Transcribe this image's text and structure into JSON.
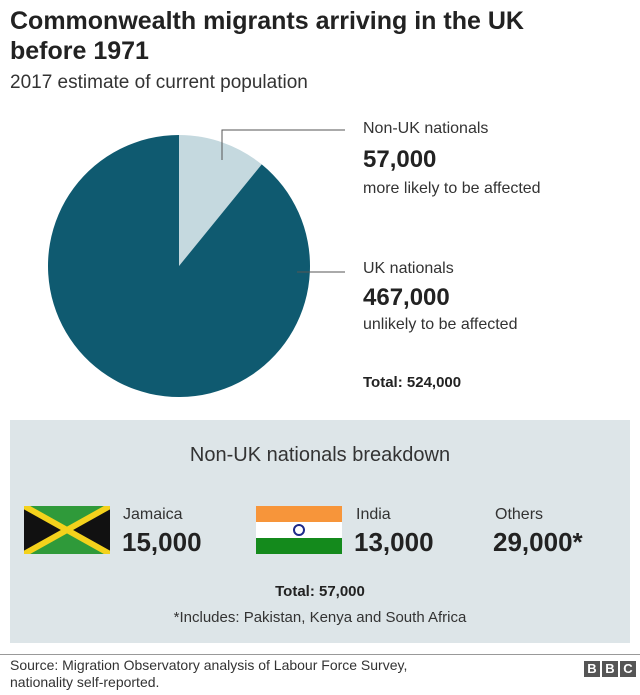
{
  "title": "Commonwealth migrants arriving in the UK before 1971",
  "subtitle": "2017 estimate of current population",
  "chart_data": {
    "type": "pie",
    "title": "Commonwealth migrants arriving in the UK before 1971",
    "subtitle": "2017 estimate of current population",
    "slices": [
      {
        "label": "Non-UK nationals",
        "value": 57000,
        "value_label": "57,000",
        "note": "more likely to be affected",
        "color": "#c5d9df"
      },
      {
        "label": "UK nationals",
        "value": 467000,
        "value_label": "467,000",
        "note": "unlikely to be affected",
        "color": "#0f5a70"
      }
    ],
    "total_label": "Total: 524,000"
  },
  "breakdown": {
    "title": "Non-UK nationals breakdown",
    "items": [
      {
        "name": "Jamaica",
        "value": "15,000"
      },
      {
        "name": "India",
        "value": "13,000"
      },
      {
        "name": "Others",
        "value": "29,000*"
      }
    ],
    "total": "Total: 57,000",
    "footnote": "*Includes: Pakistan, Kenya and South Africa"
  },
  "footer": {
    "source": "Source: Migration Observatory analysis of Labour Force Survey, nationality self-reported.",
    "logo": "BBC"
  }
}
